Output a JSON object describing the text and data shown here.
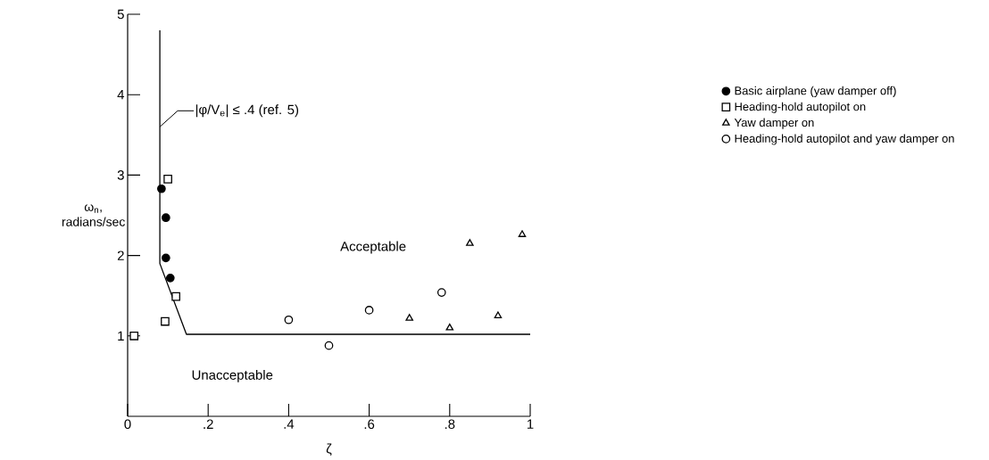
{
  "chart_data": {
    "type": "scatter",
    "xlabel": "ζ",
    "ylabel": "ω$_{n}$, radians/sec",
    "xlim": [
      0,
      1
    ],
    "ylim": [
      0,
      5
    ],
    "xticks": [
      0,
      {
        "value": 0.2,
        "label": ".2"
      },
      {
        "value": 0.4,
        "label": ".4"
      },
      {
        "value": 0.6,
        "label": ".6"
      },
      {
        "value": 0.8,
        "label": ".8"
      },
      1
    ],
    "yticks": [
      1,
      2,
      3,
      4,
      5
    ],
    "grid": false,
    "legend": "right",
    "series": [
      {
        "name": "Basic airplane (yaw damper off)",
        "color": "#000000",
        "marker": "circle",
        "x": [
          0.084,
          0.095,
          0.095,
          0.106
        ],
        "values": [
          2.83,
          2.47,
          1.97,
          1.72
        ]
      },
      {
        "name": "Heading-hold autopilot on",
        "color": "#000000",
        "marker": "square",
        "x": [
          0.1,
          0.12,
          0.093,
          0.016
        ],
        "values": [
          2.95,
          1.49,
          1.18,
          1.0
        ]
      },
      {
        "name": "Yaw damper on",
        "color": "#000000",
        "marker": "triangle",
        "x": [
          0.7,
          0.8,
          0.85,
          0.92,
          0.98
        ],
        "values": [
          1.22,
          1.1,
          2.15,
          1.25,
          2.26
        ]
      },
      {
        "name": "Heading-hold autopilot and yaw damper on",
        "color": "#000000",
        "marker": "circle",
        "x": [
          0.4,
          0.5,
          0.6,
          0.78
        ],
        "values": [
          1.2,
          0.88,
          1.32,
          1.54
        ]
      },
      {
        "type": "line",
        "color": "#000000",
        "marker": "none",
        "line_style": "solid",
        "x": [
          0.08,
          0.08,
          0.146,
          1.0
        ],
        "values": [
          4.8,
          1.9,
          1.02,
          1.02
        ]
      }
    ],
    "annotations": [
      {
        "text": "|φ/V$_{e}$| ≤ .4 (ref. 5)",
        "x": 0.08,
        "y": 3.6
      },
      "Acceptable",
      "Unacceptable"
    ]
  }
}
